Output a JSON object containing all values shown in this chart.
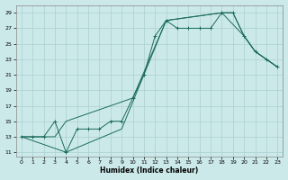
{
  "xlabel": "Humidex (Indice chaleur)",
  "xlim": [
    -0.5,
    23.5
  ],
  "ylim": [
    10.5,
    30
  ],
  "xticks": [
    0,
    1,
    2,
    3,
    4,
    5,
    6,
    7,
    8,
    9,
    10,
    11,
    12,
    13,
    14,
    15,
    16,
    17,
    18,
    19,
    20,
    21,
    22,
    23
  ],
  "yticks": [
    11,
    13,
    15,
    17,
    19,
    21,
    23,
    25,
    27,
    29
  ],
  "bg_color": "#cce9ea",
  "grid_color": "#aacfcf",
  "line_color": "#1a6b5a",
  "line1_x": [
    0,
    1,
    2,
    3,
    4,
    5,
    6,
    7,
    8,
    9,
    10,
    11,
    12,
    13,
    14,
    15,
    16,
    17,
    18,
    19,
    20,
    21,
    22,
    23
  ],
  "line1_y": [
    13,
    13,
    13,
    15,
    11,
    14,
    14,
    14,
    15,
    15,
    18,
    21,
    26,
    28,
    27,
    27,
    27,
    27,
    29,
    29,
    26,
    24,
    23,
    22
  ],
  "line2_x": [
    0,
    4,
    9,
    13,
    18,
    19,
    20,
    21,
    22,
    23
  ],
  "line2_y": [
    13,
    11,
    14,
    28,
    29,
    29,
    26,
    24,
    23,
    22
  ],
  "line3_x": [
    0,
    1,
    2,
    3,
    4,
    10,
    13,
    18,
    20,
    21,
    22,
    23
  ],
  "line3_y": [
    13,
    13,
    13,
    13,
    15,
    18,
    28,
    29,
    26,
    24,
    23,
    22
  ]
}
